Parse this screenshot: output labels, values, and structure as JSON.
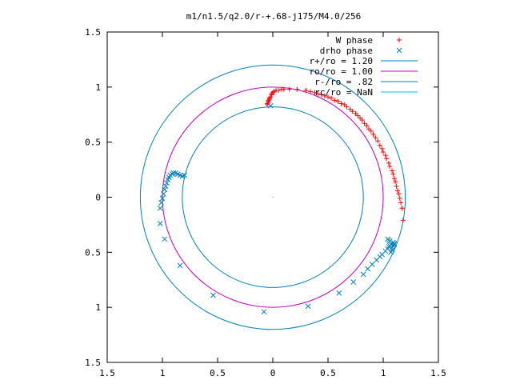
{
  "chart_data": {
    "type": "scatter",
    "title": "m1/n1.5/q2.0/r-+.68-j175/M4.0/256",
    "xlim": [
      -1.5,
      1.5
    ],
    "ylim": [
      -1.5,
      1.5
    ],
    "x_tick_values": [
      -1.5,
      -1,
      -0.5,
      0,
      0.5,
      1,
      1.5
    ],
    "x_tick_labels": [
      "1.5",
      "1",
      "0.5",
      "0",
      "0.5",
      "1",
      "1.5"
    ],
    "y_tick_values": [
      -1.5,
      -1,
      -0.5,
      0,
      0.5,
      1,
      1.5
    ],
    "y_tick_labels": [
      "1.5",
      "1",
      "0.5",
      "0",
      "0.5",
      "1",
      "1.5"
    ],
    "grid": false,
    "legend_position": "top-right",
    "series": [
      {
        "name": "W phase",
        "kind": "points",
        "marker": "plus",
        "color": "#ff0000",
        "points": [
          [
            -0.05,
            0.84
          ],
          [
            -0.05,
            0.85
          ],
          [
            -0.04,
            0.86
          ],
          [
            -0.04,
            0.87
          ],
          [
            -0.04,
            0.88
          ],
          [
            -0.03,
            0.89
          ],
          [
            -0.03,
            0.9
          ],
          [
            -0.02,
            0.91
          ],
          [
            -0.01,
            0.93
          ],
          [
            -0.01,
            0.94
          ],
          [
            0.0,
            0.95
          ],
          [
            0.01,
            0.96
          ],
          [
            0.03,
            0.97
          ],
          [
            0.05,
            0.97
          ],
          [
            0.08,
            0.98
          ],
          [
            0.1,
            0.98
          ],
          [
            0.15,
            0.98
          ],
          [
            0.22,
            0.98
          ],
          [
            0.3,
            0.97
          ],
          [
            0.34,
            0.96
          ],
          [
            0.38,
            0.95
          ],
          [
            0.41,
            0.94
          ],
          [
            0.44,
            0.93
          ],
          [
            0.47,
            0.92
          ],
          [
            0.5,
            0.91
          ],
          [
            0.53,
            0.9
          ],
          [
            0.56,
            0.88
          ],
          [
            0.59,
            0.87
          ],
          [
            0.62,
            0.85
          ],
          [
            0.65,
            0.84
          ],
          [
            0.67,
            0.82
          ],
          [
            0.7,
            0.8
          ],
          [
            0.72,
            0.78
          ],
          [
            0.75,
            0.76
          ],
          [
            0.77,
            0.74
          ],
          [
            0.79,
            0.72
          ],
          [
            0.81,
            0.7
          ],
          [
            0.83,
            0.67
          ],
          [
            0.85,
            0.65
          ],
          [
            0.87,
            0.62
          ],
          [
            0.89,
            0.6
          ],
          [
            0.91,
            0.57
          ],
          [
            0.93,
            0.54
          ],
          [
            0.95,
            0.51
          ],
          [
            0.97,
            0.47
          ],
          [
            0.99,
            0.44
          ],
          [
            1.0,
            0.41
          ],
          [
            1.02,
            0.38
          ],
          [
            1.03,
            0.35
          ],
          [
            1.05,
            0.31
          ],
          [
            1.06,
            0.28
          ],
          [
            1.08,
            0.24
          ],
          [
            1.09,
            0.21
          ],
          [
            1.1,
            0.17
          ],
          [
            1.11,
            0.14
          ],
          [
            1.12,
            0.1
          ],
          [
            1.13,
            0.06
          ],
          [
            1.14,
            0.03
          ],
          [
            1.15,
            -0.01
          ],
          [
            1.16,
            -0.05
          ],
          [
            1.17,
            -0.1
          ],
          [
            1.18,
            -0.21
          ]
        ]
      },
      {
        "name": "drho phase",
        "kind": "points",
        "marker": "cross",
        "color": "#0080c0",
        "points": [
          [
            -1.02,
            -0.1
          ],
          [
            -1.01,
            -0.05
          ],
          [
            -1.0,
            -0.01
          ],
          [
            -0.99,
            0.03
          ],
          [
            -0.98,
            0.07
          ],
          [
            -0.97,
            0.1
          ],
          [
            -0.96,
            0.13
          ],
          [
            -0.95,
            0.16
          ],
          [
            -0.94,
            0.18
          ],
          [
            -0.93,
            0.2
          ],
          [
            -0.91,
            0.21
          ],
          [
            -0.9,
            0.22
          ],
          [
            -0.88,
            0.22
          ],
          [
            -0.86,
            0.21
          ],
          [
            -0.84,
            0.2
          ],
          [
            -0.82,
            0.19
          ],
          [
            -0.8,
            0.2
          ],
          [
            -1.02,
            -0.24
          ],
          [
            -0.98,
            -0.38
          ],
          [
            -0.84,
            -0.62
          ],
          [
            -0.54,
            -0.89
          ],
          [
            -0.08,
            -1.04
          ],
          [
            0.32,
            -0.99
          ],
          [
            0.6,
            -0.87
          ],
          [
            0.73,
            -0.77
          ],
          [
            0.82,
            -0.7
          ],
          [
            0.86,
            -0.65
          ],
          [
            0.9,
            -0.61
          ],
          [
            0.94,
            -0.57
          ],
          [
            0.97,
            -0.54
          ],
          [
            0.99,
            -0.52
          ],
          [
            1.02,
            -0.49
          ],
          [
            1.04,
            -0.47
          ],
          [
            1.05,
            -0.45
          ],
          [
            1.06,
            -0.44
          ],
          [
            1.07,
            -0.43
          ],
          [
            1.08,
            -0.42
          ],
          [
            1.09,
            -0.41
          ],
          [
            1.1,
            -0.42
          ],
          [
            1.1,
            -0.43
          ],
          [
            1.09,
            -0.44
          ],
          [
            1.08,
            -0.46
          ],
          [
            1.08,
            -0.48
          ],
          [
            1.07,
            -0.5
          ],
          [
            1.06,
            -0.4
          ],
          [
            1.05,
            -0.39
          ],
          [
            1.04,
            -0.38
          ],
          [
            -0.02,
            0.83
          ]
        ]
      },
      {
        "name": "r+/ro = 1.20",
        "kind": "circle",
        "radius": 1.2,
        "color": "#0080c0"
      },
      {
        "name": "ro/ro = 1.00",
        "kind": "circle",
        "radius": 1.0,
        "color": "#c000c0"
      },
      {
        "name": "r-/ro = .82",
        "kind": "circle",
        "radius": 0.82,
        "color": "#0080c0"
      },
      {
        "name": "rc/ro = NaN",
        "kind": "circle",
        "radius": null,
        "color": "#00c0e0"
      }
    ]
  }
}
